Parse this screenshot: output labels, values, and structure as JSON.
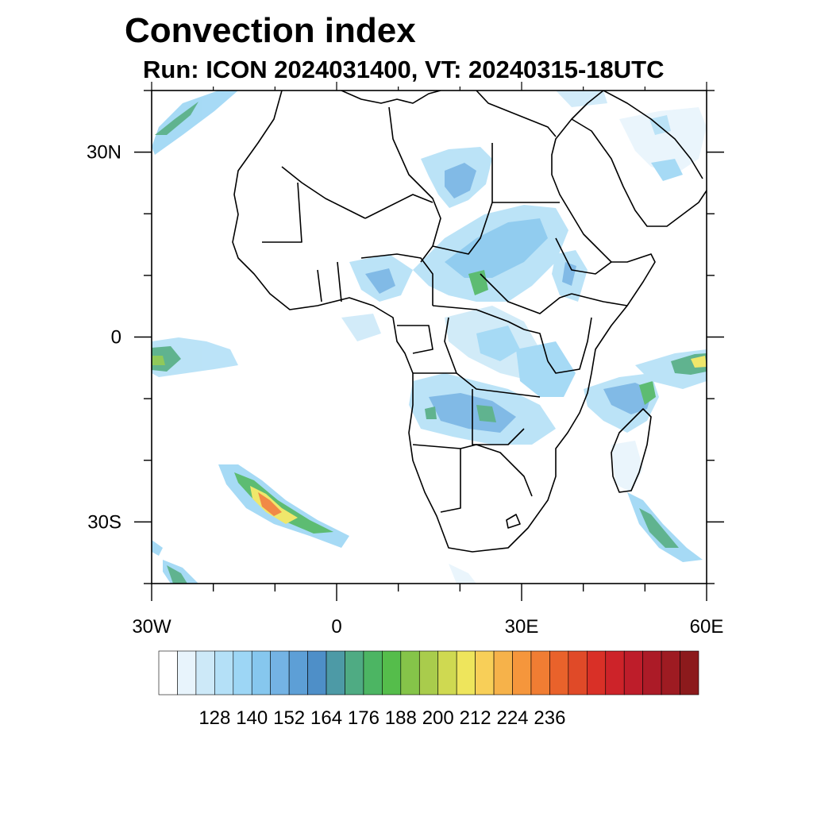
{
  "title": "Convection index",
  "subtitle": "Run: ICON 2024031400,  VT: 20240315-18UTC",
  "lon_ticks": [
    {
      "value": -30,
      "label": "30W"
    },
    {
      "value": 0,
      "label": "0"
    },
    {
      "value": 30,
      "label": "30E"
    },
    {
      "value": 60,
      "label": "60E"
    }
  ],
  "lat_ticks": [
    {
      "value": 30,
      "label": "30N"
    },
    {
      "value": 0,
      "label": "0"
    },
    {
      "value": -30,
      "label": "30S"
    }
  ],
  "lon_range": [
    -30,
    60
  ],
  "lat_range": [
    -40,
    40
  ],
  "colorbar": {
    "labels": [
      "128",
      "140",
      "152",
      "164",
      "176",
      "188",
      "200",
      "212",
      "224",
      "236"
    ],
    "colors": [
      "#ffffff",
      "#e8f4fc",
      "#cde9f8",
      "#b4e0f7",
      "#9dd6f5",
      "#86c7ee",
      "#74b3e4",
      "#5d9fd6",
      "#4e8fc8",
      "#4d9aa6",
      "#4fab83",
      "#4cb563",
      "#55bd4b",
      "#85c449",
      "#a9cc4c",
      "#cfd951",
      "#eee55c",
      "#f8cf58",
      "#f6b24a",
      "#f5963c",
      "#f07d33",
      "#e9622b",
      "#e04a28",
      "#d93027",
      "#cd2329",
      "#be1d2a",
      "#ac1b27",
      "#9e1b22",
      "#8c1a1c"
    ]
  }
}
